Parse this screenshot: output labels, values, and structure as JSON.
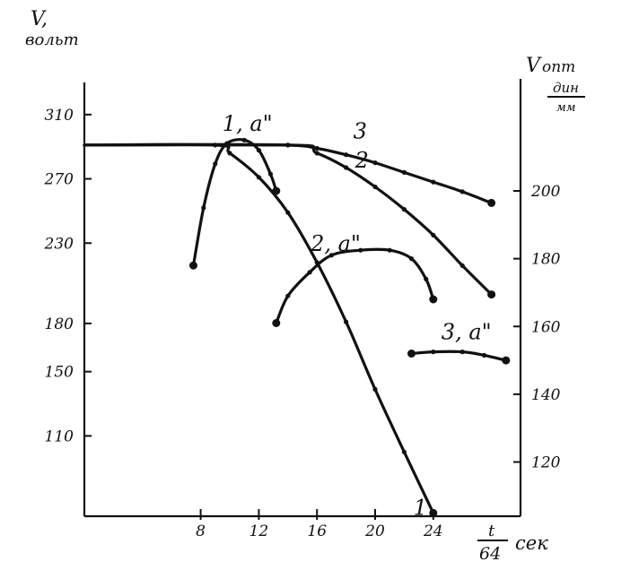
{
  "chart_data": {
    "type": "line",
    "x_axis": {
      "range": [
        0,
        30
      ],
      "ticks": [
        8,
        12,
        16,
        20,
        24
      ],
      "tick_labels": [
        "8",
        "12",
        "16",
        "20",
        "24"
      ],
      "label_num": "t",
      "label_den": "64",
      "label_unit": "сек"
    },
    "y_left": {
      "label_symbol": "V,",
      "label_unit": "вольт",
      "range": [
        60,
        330
      ],
      "ticks": [
        310,
        270,
        230,
        180,
        150,
        110
      ],
      "tick_labels": [
        "310",
        "270",
        "230",
        "180",
        "150",
        "110"
      ]
    },
    "y_right": {
      "label_symbol": "V",
      "label_sub": "опт",
      "label_unit_num": "дин",
      "label_unit_den": "мм",
      "range": [
        104,
        232
      ],
      "ticks": [
        200,
        180,
        160,
        140,
        120
      ],
      "tick_labels": [
        "200",
        "180",
        "160",
        "140",
        "120"
      ]
    },
    "series": [
      {
        "name": "1",
        "axis": "left",
        "points": [
          [
            0,
            291
          ],
          [
            9,
            291
          ],
          [
            10,
            286
          ],
          [
            12,
            271
          ],
          [
            14,
            249
          ],
          [
            16,
            218
          ],
          [
            18,
            181
          ],
          [
            20,
            139
          ],
          [
            22,
            100
          ],
          [
            24,
            62
          ]
        ]
      },
      {
        "name": "2",
        "axis": "left",
        "points": [
          [
            0,
            291
          ],
          [
            14,
            291
          ],
          [
            16,
            286
          ],
          [
            18,
            277
          ],
          [
            20,
            265
          ],
          [
            22,
            251
          ],
          [
            24,
            235
          ],
          [
            26,
            216
          ],
          [
            28,
            198
          ]
        ]
      },
      {
        "name": "3",
        "axis": "left",
        "points": [
          [
            0,
            291
          ],
          [
            14,
            291
          ],
          [
            16,
            289
          ],
          [
            18,
            285
          ],
          [
            20,
            280
          ],
          [
            22,
            274
          ],
          [
            24,
            268
          ],
          [
            26,
            262
          ],
          [
            28,
            255
          ]
        ]
      },
      {
        "name": "1, a\"",
        "axis": "right",
        "points": [
          [
            7.5,
            178
          ],
          [
            8.2,
            195
          ],
          [
            9,
            208
          ],
          [
            9.8,
            214
          ],
          [
            11,
            215
          ],
          [
            12,
            212
          ],
          [
            12.8,
            205
          ],
          [
            13.2,
            200
          ]
        ]
      },
      {
        "name": "2, a\"",
        "axis": "right",
        "points": [
          [
            13.2,
            161
          ],
          [
            14,
            169
          ],
          [
            15.5,
            176
          ],
          [
            17,
            181
          ],
          [
            19,
            182.5
          ],
          [
            21,
            182.5
          ],
          [
            22.5,
            180
          ],
          [
            23.5,
            174
          ],
          [
            24,
            168
          ]
        ]
      },
      {
        "name": "3, a\"",
        "axis": "right",
        "points": [
          [
            22.5,
            152
          ],
          [
            24,
            152.5
          ],
          [
            26,
            152.5
          ],
          [
            27.5,
            151.5
          ],
          [
            29,
            150
          ]
        ]
      }
    ],
    "curve_labels": [
      "1",
      "2",
      "3",
      "1, a\"",
      "2, a\"",
      "3, a\""
    ],
    "grid": false,
    "legend": "none"
  }
}
